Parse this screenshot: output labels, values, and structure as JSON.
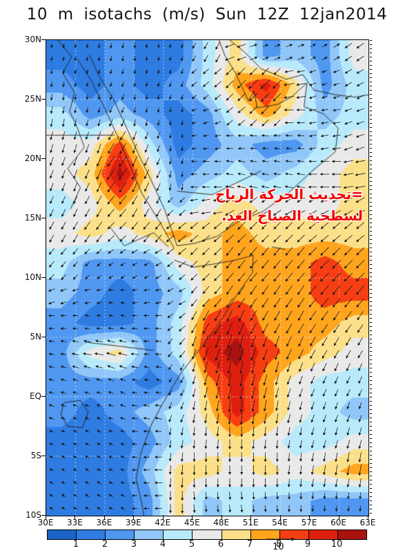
{
  "title": "10 m isotachs (m/s) Sun 12Z 12jan2014",
  "annotation": {
    "line1": "=تحديث الحركة الرياح",
    "line2": "لسطحية الصباح الغد.",
    "color": "#f20000"
  },
  "chart_data": {
    "type": "heatmap",
    "title": "10 m isotachs (m/s) Sun 12Z 12jan2014",
    "units": "m/s",
    "x_ticks": [
      "30E",
      "33E",
      "36E",
      "39E",
      "42E",
      "45E",
      "48E",
      "51E",
      "54E",
      "57E",
      "60E",
      "63E"
    ],
    "y_ticks": [
      "30N",
      "25N",
      "20N",
      "15N",
      "10N",
      "5N",
      "EQ",
      "5S",
      "10S"
    ],
    "lon_range": [
      30,
      63
    ],
    "lat_range": [
      -10,
      30
    ],
    "grid_lines": {
      "lon_step_deg": 3,
      "lat_step_deg": 5,
      "style": "dotted"
    },
    "colorbar": {
      "labels": [
        "1",
        "2",
        "3",
        "4",
        "5",
        "6",
        "7",
        "8",
        "9",
        "10"
      ],
      "colors": [
        "#1A64C8",
        "#2E7CE2",
        "#4F97F0",
        "#90C6F8",
        "#B8EAFB",
        "#E9E9E9",
        "#FBE089",
        "#FFA41D",
        "#F63E12",
        "#DE1F0F",
        "#AA1210"
      ],
      "reference_vector_label": "10"
    },
    "grid": {
      "note": "estimated 10 m wind speed (m/s) at 3-deg lon x 2.5-deg lat cell centers, row 0 = northernmost band (30N-27.5N), col 0 = 30E-33E",
      "lon_start": 31.5,
      "lon_step": 3,
      "lat_start": 28.75,
      "lat_step": 2.5,
      "values": [
        [
          1.5,
          1.5,
          2.5,
          1.5,
          1.5,
          4.5,
          6.5,
          2.5,
          3.5,
          2.5,
          5.5
        ],
        [
          2.5,
          1.5,
          2.5,
          1.5,
          2.5,
          4.5,
          7.5,
          9.5,
          6.5,
          2.5,
          4.5
        ],
        [
          4.5,
          2.5,
          3.5,
          2.5,
          1.5,
          2.5,
          5.5,
          7.5,
          5.5,
          3.5,
          4.5
        ],
        [
          5.5,
          5.5,
          8.5,
          4.5,
          1.5,
          2.5,
          3.5,
          2.5,
          2.5,
          4.5,
          5.5
        ],
        [
          5.5,
          6.5,
          10.5,
          6.5,
          2.5,
          3.5,
          4.5,
          3.5,
          4.5,
          5.5,
          6.5
        ],
        [
          4.5,
          5.5,
          7.5,
          5.5,
          3.5,
          5.5,
          6.5,
          5.5,
          5.5,
          5.5,
          6.5
        ],
        [
          5.5,
          6.5,
          5.5,
          6.5,
          7.5,
          6.5,
          7.5,
          6.5,
          6.5,
          6.5,
          6.5
        ],
        [
          4.5,
          2.5,
          2.5,
          2.5,
          5.5,
          6.5,
          7.5,
          7.5,
          7.5,
          8.5,
          7.5
        ],
        [
          3.5,
          2.5,
          1.5,
          2.5,
          3.5,
          6.5,
          7.5,
          7.5,
          7.5,
          8.5,
          8.5
        ],
        [
          2.5,
          1.5,
          1.5,
          2.5,
          4.5,
          8.5,
          9.5,
          7.5,
          7.5,
          7.5,
          6.5
        ],
        [
          2.5,
          5.5,
          6.5,
          2.5,
          4.5,
          9.5,
          10.5,
          8.5,
          7.5,
          6.5,
          5.5
        ],
        [
          2.5,
          2.5,
          2.5,
          1.5,
          2.5,
          7.5,
          9.5,
          7.5,
          5.5,
          4.5,
          4.5
        ],
        [
          2.5,
          1.5,
          2.5,
          3.5,
          4.5,
          6.5,
          9.5,
          7.5,
          5.5,
          4.5,
          3.5
        ],
        [
          1.5,
          1.5,
          1.5,
          2.5,
          4.5,
          5.5,
          6.5,
          5.5,
          4.5,
          4.5,
          5.5
        ],
        [
          1.5,
          1.5,
          1.5,
          3.5,
          6.5,
          6.5,
          5.5,
          6.5,
          5.5,
          6.5,
          7.5
        ],
        [
          1.5,
          1.5,
          1.5,
          2.5,
          6.5,
          3.5,
          4.5,
          3.5,
          3.5,
          2.5,
          2.5
        ]
      ]
    },
    "wind_arrows": {
      "angle_convention": "screen degrees: 0=east(right), 90=south(down), 180=west(left), 270=north(up); arrow points toward this direction",
      "angles": [
        [
          100,
          100,
          100,
          95,
          110,
          120,
          160,
          340,
          340,
          330,
          145
        ],
        [
          100,
          100,
          110,
          100,
          110,
          140,
          135,
          135,
          170,
          160,
          150
        ],
        [
          100,
          105,
          115,
          100,
          100,
          160,
          140,
          135,
          180,
          170,
          160
        ],
        [
          105,
          110,
          120,
          110,
          95,
          170,
          180,
          185,
          185,
          170,
          160
        ],
        [
          110,
          115,
          125,
          115,
          100,
          180,
          190,
          190,
          190,
          180,
          170
        ],
        [
          115,
          120,
          130,
          120,
          135,
          170,
          150,
          145,
          150,
          150,
          150
        ],
        [
          120,
          125,
          135,
          130,
          140,
          140,
          135,
          135,
          135,
          140,
          140
        ],
        [
          130,
          135,
          145,
          150,
          140,
          135,
          130,
          130,
          130,
          135,
          135
        ],
        [
          160,
          170,
          180,
          170,
          150,
          130,
          125,
          125,
          125,
          130,
          130
        ],
        [
          180,
          185,
          190,
          180,
          140,
          120,
          115,
          120,
          120,
          125,
          125
        ],
        [
          190,
          190,
          195,
          185,
          130,
          110,
          105,
          110,
          115,
          120,
          120
        ],
        [
          195,
          195,
          200,
          190,
          120,
          105,
          100,
          105,
          110,
          115,
          115
        ],
        [
          200,
          200,
          200,
          190,
          110,
          100,
          95,
          100,
          105,
          110,
          110
        ],
        [
          200,
          205,
          200,
          185,
          100,
          95,
          90,
          95,
          100,
          105,
          105
        ],
        [
          205,
          210,
          200,
          180,
          95,
          90,
          90,
          90,
          95,
          100,
          100
        ],
        [
          210,
          210,
          205,
          180,
          90,
          85,
          85,
          85,
          90,
          95,
          95
        ]
      ]
    }
  }
}
